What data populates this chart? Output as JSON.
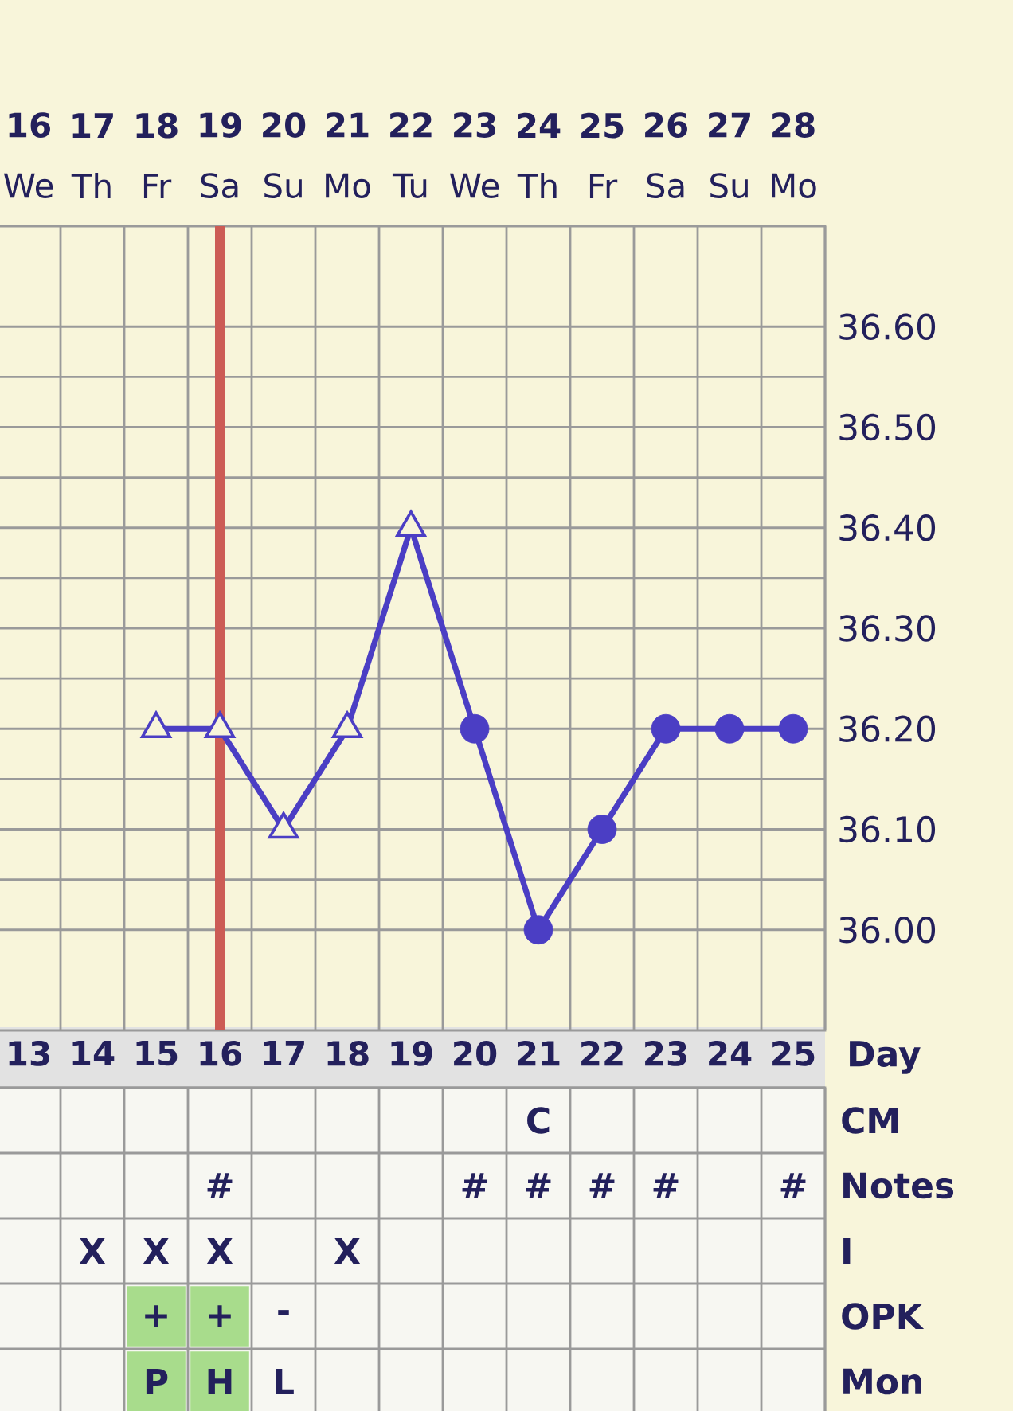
{
  "chart_data": [
    {
      "type": "line",
      "categories": [
        "13",
        "14",
        "15",
        "16",
        "17",
        "18",
        "19",
        "20",
        "21",
        "22",
        "23",
        "24",
        "25"
      ],
      "xlabel": "Day",
      "ylim": [
        35.9,
        36.7
      ],
      "yticks": [
        {
          "value": 36.0,
          "label": "36.00"
        },
        {
          "value": 36.1,
          "label": "36.10"
        },
        {
          "value": 36.2,
          "label": "36.20"
        },
        {
          "value": 36.3,
          "label": "36.30"
        },
        {
          "value": 36.4,
          "label": "36.40"
        },
        {
          "value": 36.5,
          "label": "36.50"
        },
        {
          "value": 36.6,
          "label": "36.60"
        }
      ],
      "x2lim": [
        15.5,
        28.5
      ],
      "x2ticks": [
        {
          "value": 16,
          "label": "**16** We"
        },
        {
          "value": 17,
          "label": "**17** Th"
        },
        {
          "value": 18,
          "label": "**18** Fr"
        },
        {
          "value": 19,
          "label": "**19** Sa"
        },
        {
          "value": 20,
          "label": "**20** Su"
        },
        {
          "value": 21,
          "label": "**21** Mo"
        },
        {
          "value": 22,
          "label": "**22** Tu"
        },
        {
          "value": 23,
          "label": "**23** We"
        },
        {
          "value": 24,
          "label": "**24** Th"
        },
        {
          "value": 25,
          "label": "**25** Fr"
        },
        {
          "value": 26,
          "label": "**26** Sa"
        },
        {
          "value": 27,
          "label": "**27** Su"
        },
        {
          "value": 28,
          "label": "**28** Mo"
        }
      ],
      "series": [
        {
          "type": "line",
          "color": "#4b3ec4",
          "marker": "none",
          "values": [
            null,
            null,
            36.2,
            36.2,
            36.1,
            36.2,
            36.4,
            36.2,
            36.0,
            36.1,
            36.2,
            36.2,
            36.2
          ]
        },
        {
          "type": "scatter",
          "color": "#4b3ec4",
          "marker": "triangle",
          "values": [
            null,
            null,
            36.2,
            36.2,
            36.1,
            36.2,
            36.4,
            null,
            null,
            null,
            null,
            null,
            null
          ]
        },
        {
          "type": "scatter",
          "color": "#4b3ec4",
          "marker": "circle",
          "values": [
            null,
            null,
            null,
            null,
            null,
            null,
            null,
            36.2,
            36.0,
            36.1,
            36.2,
            36.2,
            36.2
          ]
        }
      ],
      "ref_lines": [
        {
          "axis": "x",
          "value": "16",
          "color": "#cc5c55"
        }
      ],
      "grid": true
    },
    {
      "type": "other",
      "categories": [
        null,
        null,
        null,
        null,
        null,
        null,
        null,
        null,
        null,
        null,
        null,
        null,
        null
      ],
      "y2_categories": [
        "CM",
        "Notes",
        "I",
        "OPK",
        "Mon"
      ],
      "cell_labels": [
        [
          null,
          null,
          null,
          null,
          null,
          null,
          null,
          null,
          "C",
          null,
          null,
          null,
          null
        ],
        [
          null,
          null,
          null,
          "#",
          null,
          null,
          null,
          "#",
          "#",
          "#",
          "#",
          null,
          "#"
        ],
        [
          null,
          "X",
          "X",
          "X",
          null,
          "X",
          null,
          null,
          null,
          null,
          null,
          null,
          null
        ],
        [
          null,
          null,
          "+",
          "+",
          "-",
          null,
          null,
          null,
          null,
          null,
          null,
          null,
          null
        ],
        [
          null,
          null,
          "P",
          "H",
          "L",
          null,
          null,
          null,
          null,
          null,
          null,
          null,
          null
        ]
      ],
      "colors": [
        [
          null,
          null,
          null,
          null,
          null,
          null,
          null,
          null,
          null,
          null,
          null,
          null,
          null
        ],
        [
          null,
          null,
          null,
          null,
          null,
          null,
          null,
          null,
          null,
          null,
          null,
          null,
          null
        ],
        [
          null,
          null,
          null,
          null,
          null,
          null,
          null,
          null,
          null,
          null,
          null,
          null,
          null
        ],
        [
          null,
          null,
          "#a8dc8c",
          "#a8dc8c",
          null,
          null,
          null,
          null,
          null,
          null,
          null,
          null,
          null
        ],
        [
          null,
          null,
          "#a8dc8c",
          "#a8dc8c",
          null,
          null,
          null,
          null,
          null,
          null,
          null,
          null,
          null
        ]
      ]
    }
  ]
}
